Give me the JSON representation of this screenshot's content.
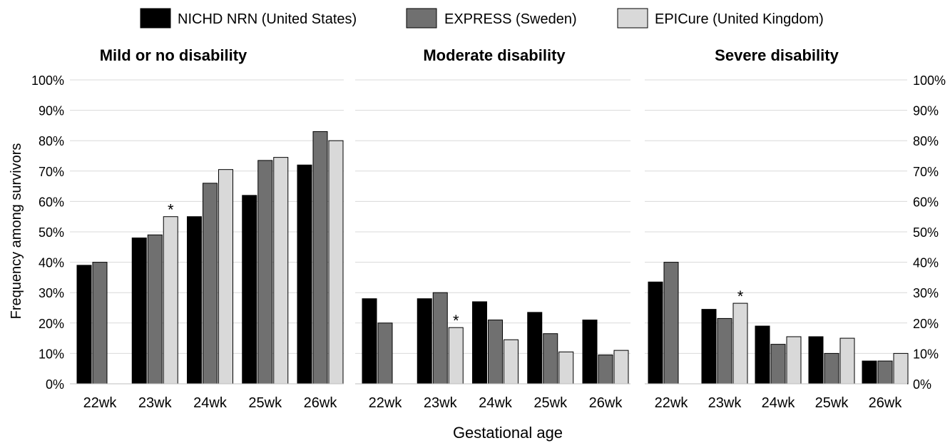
{
  "legend": {
    "items": [
      {
        "name": "NICHD NRN (United States)",
        "color": "#000000"
      },
      {
        "name": "EXPRESS (Sweden)",
        "color": "#707070"
      },
      {
        "name": "EPICure (United Kingdom)",
        "color": "#d9d9d9"
      }
    ]
  },
  "y_axis": {
    "label": "Frequency among survivors",
    "ticks": [
      "0%",
      "10%",
      "20%",
      "30%",
      "40%",
      "50%",
      "60%",
      "70%",
      "80%",
      "90%",
      "100%"
    ]
  },
  "x_axis": {
    "label": "Gestational age"
  },
  "chart_data": [
    {
      "type": "bar",
      "title": "Mild or no disability",
      "categories": [
        "22wk",
        "23wk",
        "24wk",
        "25wk",
        "26wk"
      ],
      "xlabel": "Gestational age",
      "ylabel": "Frequency among survivors",
      "ylim": [
        0,
        100
      ],
      "unit": "%",
      "grid": true,
      "series": [
        {
          "name": "NICHD NRN (United States)",
          "values": [
            39,
            48,
            55,
            62,
            72
          ]
        },
        {
          "name": "EXPRESS (Sweden)",
          "values": [
            40,
            49,
            66,
            73.5,
            83
          ]
        },
        {
          "name": "EPICure (United Kingdom)",
          "values": [
            null,
            55,
            70.5,
            74.5,
            80
          ]
        }
      ],
      "annotations": [
        {
          "category": "23wk",
          "series": "EPICure (United Kingdom)",
          "text": "*"
        }
      ]
    },
    {
      "type": "bar",
      "title": "Moderate disability",
      "categories": [
        "22wk",
        "23wk",
        "24wk",
        "25wk",
        "26wk"
      ],
      "xlabel": "Gestational age",
      "ylabel": "Frequency among survivors",
      "ylim": [
        0,
        100
      ],
      "unit": "%",
      "grid": true,
      "series": [
        {
          "name": "NICHD NRN (United States)",
          "values": [
            28,
            28,
            27,
            23.5,
            21
          ]
        },
        {
          "name": "EXPRESS (Sweden)",
          "values": [
            20,
            30,
            21,
            16.5,
            9.5
          ]
        },
        {
          "name": "EPICure (United Kingdom)",
          "values": [
            null,
            18.5,
            14.5,
            10.5,
            11
          ]
        }
      ],
      "annotations": [
        {
          "category": "23wk",
          "series": "EPICure (United Kingdom)",
          "text": "*"
        }
      ]
    },
    {
      "type": "bar",
      "title": "Severe disability",
      "categories": [
        "22wk",
        "23wk",
        "24wk",
        "25wk",
        "26wk"
      ],
      "xlabel": "Gestational age",
      "ylabel": "Frequency among survivors",
      "ylim": [
        0,
        100
      ],
      "unit": "%",
      "grid": true,
      "series": [
        {
          "name": "NICHD NRN (United States)",
          "values": [
            33.5,
            24.5,
            19,
            15.5,
            7.5
          ]
        },
        {
          "name": "EXPRESS (Sweden)",
          "values": [
            40,
            21.5,
            13,
            10,
            7.5
          ]
        },
        {
          "name": "EPICure (United Kingdom)",
          "values": [
            null,
            26.5,
            15.5,
            15,
            10
          ]
        }
      ],
      "annotations": [
        {
          "category": "23wk",
          "series": "EPICure (United Kingdom)",
          "text": "*"
        }
      ]
    }
  ]
}
